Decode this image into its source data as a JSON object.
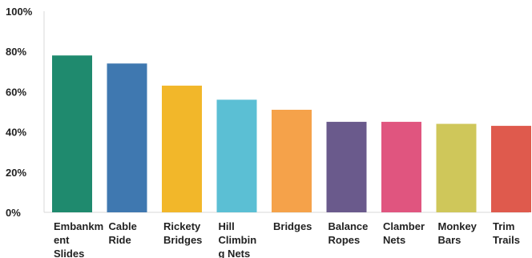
{
  "chart_data": {
    "type": "bar",
    "title": "",
    "xlabel": "",
    "ylabel": "",
    "ylim": [
      0,
      100
    ],
    "y_ticks": [
      "0%",
      "20%",
      "40%",
      "60%",
      "80%",
      "100%"
    ],
    "y_tick_values": [
      0,
      20,
      40,
      60,
      80,
      100
    ],
    "categories": [
      "Embankment Slides",
      "Cable Ride",
      "Rickety Bridges",
      "Hill Climbing Nets",
      "Bridges",
      "Balance Ropes",
      "Clamber Nets",
      "Monkey Bars",
      "Trim Trails"
    ],
    "category_lines": [
      [
        "Embankm",
        "ent",
        "Slides"
      ],
      [
        "Cable",
        "Ride"
      ],
      [
        "Rickety",
        "Bridges"
      ],
      [
        "Hill",
        "Climbin",
        "g Nets"
      ],
      [
        "Bridges"
      ],
      [
        "Balance",
        "Ropes"
      ],
      [
        "Clamber",
        "Nets"
      ],
      [
        "Monkey",
        "Bars"
      ],
      [
        "Trim",
        "Trails"
      ]
    ],
    "values": [
      78,
      74,
      63,
      56,
      51,
      45,
      45,
      44,
      43
    ],
    "colors": [
      "#1f8a6e",
      "#3f78b0",
      "#f2b72a",
      "#5bbfd4",
      "#f5a24a",
      "#6a5a8c",
      "#e0557f",
      "#cfc75a",
      "#df5a4d"
    ],
    "grid": false,
    "legend": "none"
  }
}
